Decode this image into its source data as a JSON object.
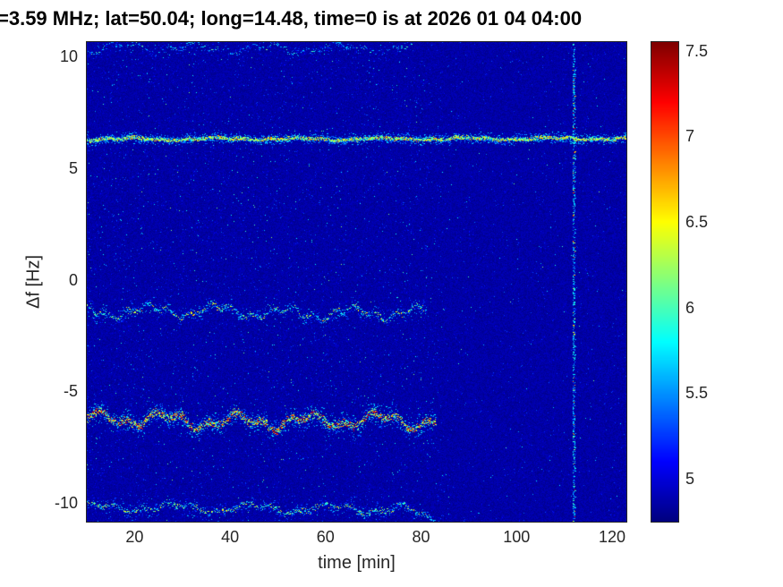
{
  "figure": {
    "title": "=3.59 MHz;  lat=50.04; long=14.48, time=0 is at 2026 01 04 04:00"
  },
  "chart_data": {
    "type": "heatmap",
    "subtype": "doppler-shift-spectrogram",
    "title": "=3.59 MHz;  lat=50.04; long=14.48, time=0 is at 2026 01 04 04:00",
    "xlabel": "time [min]",
    "ylabel": "Δf [Hz]",
    "x_range": [
      10,
      123
    ],
    "y_range": [
      -10.85,
      10.65
    ],
    "x_ticks": [
      20,
      40,
      60,
      80,
      100,
      120
    ],
    "y_ticks": [
      -10,
      -5,
      0,
      5,
      10
    ],
    "grid": false,
    "colorbar": {
      "colormap": "jet",
      "range": [
        4.75,
        7.55
      ],
      "ticks": [
        5,
        5.5,
        6,
        6.5,
        7,
        7.5
      ],
      "position": "right"
    },
    "background_level": 4.85,
    "features": {
      "horizontal_traces": [
        {
          "name": "upper-edge-trace",
          "center_hz": 10.35,
          "amplitude_hz": 0.25,
          "time_span_min": [
            10,
            78
          ],
          "strength": "faint"
        },
        {
          "name": "carrier-line",
          "center_hz": 6.3,
          "amplitude_hz": 0.06,
          "time_span_min": [
            10,
            123
          ],
          "strength": "strong"
        },
        {
          "name": "wavy-trace-minus1p5",
          "center_hz": -1.45,
          "amplitude_hz": 0.3,
          "time_span_min": [
            10,
            81
          ],
          "strength": "medium"
        },
        {
          "name": "wavy-trace-minus6p2",
          "center_hz": -6.25,
          "amplitude_hz": 0.35,
          "time_span_min": [
            10,
            83
          ],
          "strength": "very-strong"
        },
        {
          "name": "wavy-trace-minus10p2",
          "center_hz": -10.2,
          "amplitude_hz": 0.22,
          "time_span_min": [
            10,
            84
          ],
          "strength": "medium",
          "end_dip_after_min": 76
        }
      ],
      "vertical_event": {
        "time_min": 112,
        "span_hz": [
          -10.85,
          10.65
        ],
        "strength": "medium",
        "value_range": [
          5.2,
          7.3
        ]
      }
    }
  }
}
